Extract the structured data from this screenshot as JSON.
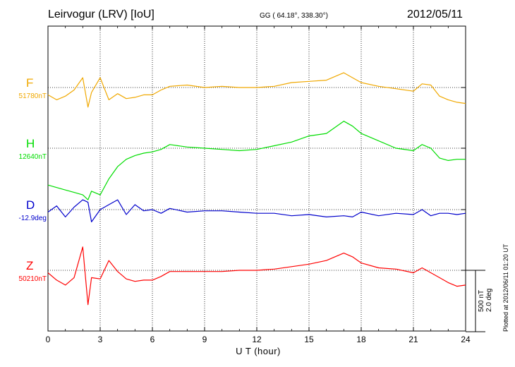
{
  "header": {
    "title": "Leirvogur (LRV)  [IoU]",
    "coords": "GG ( 64.18°, 338.30°)",
    "date": "2012/05/11"
  },
  "plot_note": "Plotted at 2012/06/11 01:20 UT",
  "chart_data": {
    "type": "line",
    "title": "Leirvogur (LRV)  [IoU]",
    "xlabel": "U T (hour)",
    "xlim": [
      0,
      24
    ],
    "xticks": [
      "0",
      "3",
      "6",
      "9",
      "12",
      "15",
      "18",
      "21",
      "24"
    ],
    "grid": true,
    "scale_bar": {
      "nt_label": "500 nT",
      "deg_label": "2.0 deg"
    },
    "x": [
      0,
      0.5,
      1,
      1.5,
      2,
      2.3,
      2.5,
      3,
      3.5,
      4,
      4.5,
      5,
      5.5,
      6,
      6.5,
      7,
      8,
      9,
      10,
      11,
      12,
      13,
      14,
      15,
      16,
      17,
      17.5,
      18,
      19,
      20,
      21,
      21.5,
      22,
      22.5,
      23,
      23.5,
      24
    ],
    "series": [
      {
        "name": "F",
        "base": "51780nT",
        "color": "#f0a800",
        "values": [
          -60,
          -100,
          -70,
          -20,
          80,
          -160,
          -40,
          80,
          -100,
          -50,
          -90,
          -80,
          -60,
          -60,
          -20,
          10,
          20,
          0,
          10,
          0,
          0,
          10,
          40,
          50,
          60,
          120,
          80,
          40,
          10,
          -10,
          -30,
          30,
          20,
          -70,
          -100,
          -120,
          -130
        ]
      },
      {
        "name": "H",
        "base": "12640nT",
        "color": "#00dd00",
        "values": [
          -300,
          -320,
          -340,
          -360,
          -380,
          -420,
          -350,
          -380,
          -250,
          -150,
          -90,
          -60,
          -40,
          -30,
          -10,
          30,
          10,
          0,
          -10,
          -20,
          -10,
          20,
          50,
          100,
          120,
          220,
          180,
          120,
          60,
          0,
          -20,
          30,
          0,
          -80,
          -100,
          -90,
          -90
        ]
      },
      {
        "name": "D",
        "base": "-12.9deg",
        "color": "#0000cc",
        "values": [
          -20,
          30,
          -60,
          20,
          80,
          60,
          -100,
          0,
          40,
          80,
          -40,
          40,
          -10,
          0,
          -30,
          10,
          -20,
          -10,
          -10,
          -20,
          -30,
          -30,
          -50,
          -40,
          -60,
          -50,
          -60,
          -20,
          -50,
          -30,
          -40,
          0,
          -50,
          -30,
          -30,
          -40,
          -30
        ]
      },
      {
        "name": "Z",
        "base": "50210nT",
        "color": "#ff0000",
        "values": [
          -20,
          -80,
          -120,
          -60,
          190,
          -280,
          -60,
          -70,
          80,
          -10,
          -70,
          -90,
          -80,
          -80,
          -50,
          -10,
          -10,
          -10,
          -10,
          0,
          0,
          10,
          30,
          50,
          80,
          140,
          110,
          60,
          20,
          10,
          -20,
          20,
          -20,
          -60,
          -100,
          -130,
          -120
        ]
      }
    ]
  }
}
